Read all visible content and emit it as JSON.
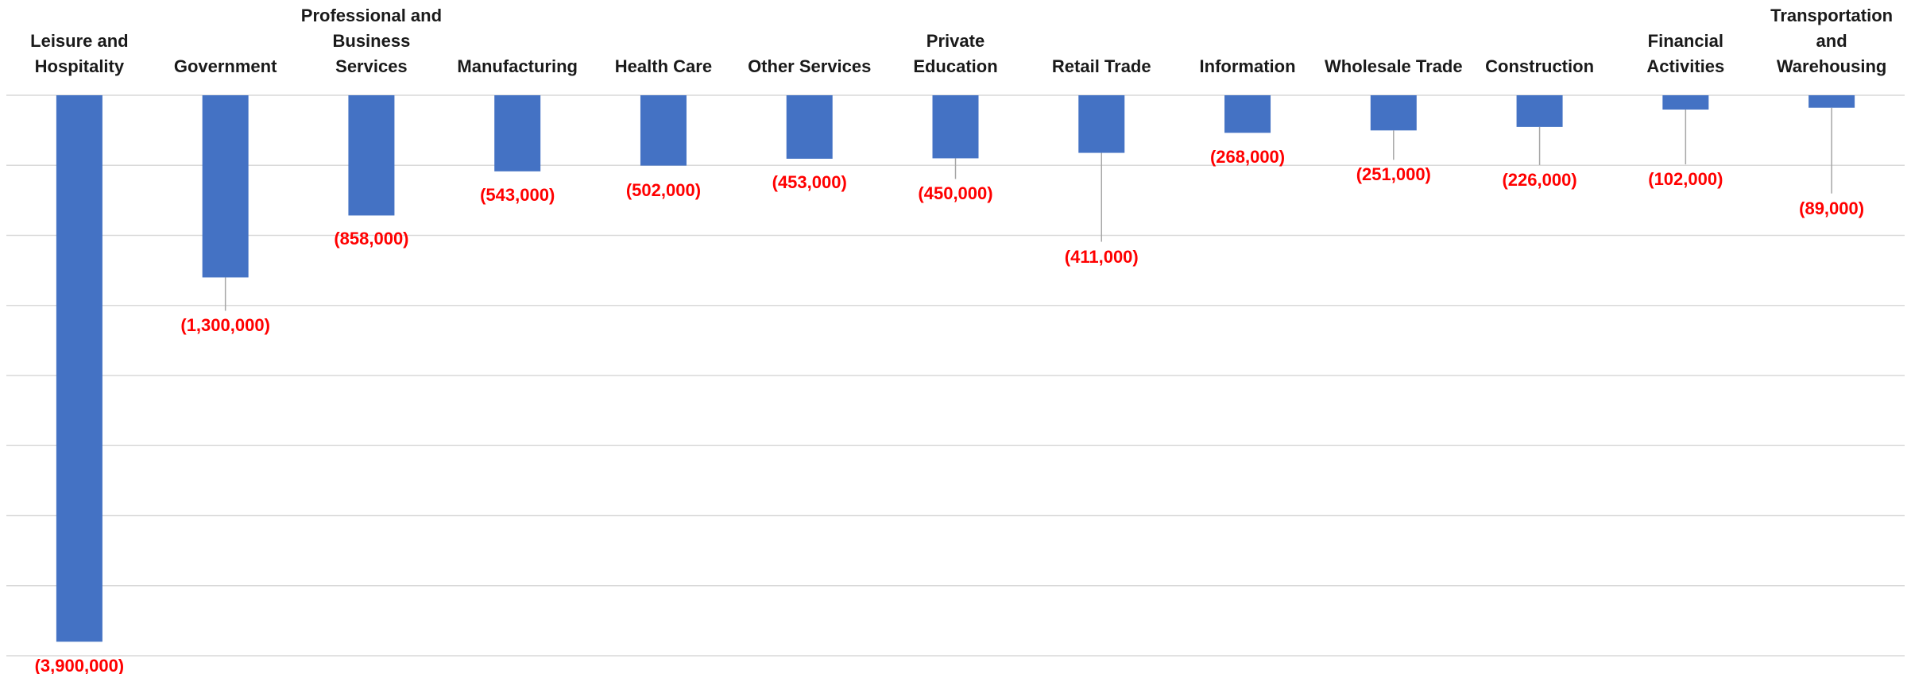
{
  "chart_data": {
    "type": "bar",
    "categories": [
      "Leisure and Hospitality",
      "Government",
      "Professional and Business Services",
      "Manufacturing",
      "Health Care",
      "Other Services",
      "Private Education",
      "Retail Trade",
      "Information",
      "Wholesale Trade",
      "Construction",
      "Financial Activities",
      "Transportation and Warehousing"
    ],
    "values": [
      -3900000,
      -1300000,
      -858000,
      -543000,
      -502000,
      -453000,
      -450000,
      -411000,
      -268000,
      -251000,
      -226000,
      -102000,
      -89000
    ],
    "value_labels": [
      "(3,900,000)",
      "(1,300,000)",
      "(858,000)",
      "(543,000)",
      "(502,000)",
      "(453,000)",
      "(450,000)",
      "(411,000)",
      "(268,000)",
      "(251,000)",
      "(226,000)",
      "(102,000)",
      "(89,000)"
    ],
    "color": "#4472c4",
    "label_color": "#ff0000",
    "ylim": [
      -4000000,
      0
    ],
    "yticks": [
      0,
      -500000,
      -1000000,
      -1500000,
      -2000000,
      -2500000,
      -3000000,
      -3500000,
      -4000000
    ],
    "grid": true
  }
}
